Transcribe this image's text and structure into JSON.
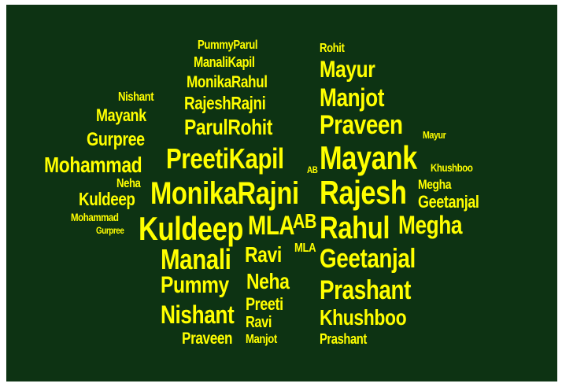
{
  "cloud": {
    "color": "#ffff00",
    "background": "#0d3313",
    "words": [
      "PummyParul",
      "ManaliKapil",
      "MonikaRahul",
      "RajeshRajni",
      "ParulRohit",
      "PreetiKapil",
      "AB",
      "MonikaRajni",
      "Kuldeep",
      "MLA",
      "AB",
      "Manali",
      "Ravi",
      "MLA",
      "Pummy",
      "Neha",
      "Nishant",
      "Preeti",
      "Ravi",
      "Praveen",
      "Manjot",
      "Nishant",
      "Mayank",
      "Gurpree",
      "Mohammad",
      "Neha",
      "Kuldeep",
      "Mohammad",
      "Gurpree",
      "Rohit",
      "Mayur",
      "Manjot",
      "Praveen",
      "Mayur",
      "Mayank",
      "Khushboo",
      "Rajesh",
      "Megha",
      "Geetanjal",
      "Rahul",
      "Megha",
      "Geetanjal",
      "Prashant",
      "Khushboo",
      "Prashant"
    ]
  }
}
